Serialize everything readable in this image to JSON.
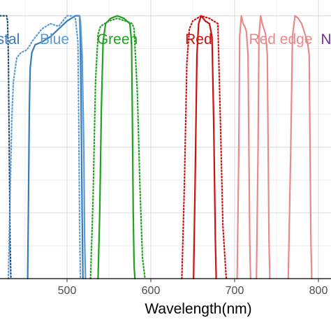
{
  "chart_data": {
    "type": "line",
    "xlabel": "Wavelength(nm)",
    "ylabel": "",
    "xlim": [
      420,
      815
    ],
    "ylim": [
      0,
      1.06
    ],
    "x_ticks": [
      500,
      600,
      700,
      800
    ],
    "x_tick_labels": [
      "500",
      "600",
      "700",
      "800"
    ],
    "grid": true,
    "band_labels": [
      {
        "text": "stal",
        "color": "#3a7ab8",
        "x": 430
      },
      {
        "text": "Blue",
        "color": "#5b9bd5",
        "x": 485
      },
      {
        "text": "Green",
        "color": "#22a022",
        "x": 560
      },
      {
        "text": "Red",
        "color": "#cc1111",
        "x": 657
      },
      {
        "text": "Red edge",
        "color": "#e88a8a",
        "x": 755
      },
      {
        "text": "Ne",
        "color": "#7030a0",
        "x": 814
      }
    ],
    "series": [
      {
        "color": "#1f4e79",
        "dash": "dotted",
        "x": [
          420,
          428,
          429,
          430,
          431,
          432,
          433
        ],
        "y": [
          1.0,
          1.0,
          0.98,
          0.85,
          0.5,
          0.15,
          0.0
        ]
      },
      {
        "color": "#3a7ab8",
        "dash": "solid",
        "x": [
          453,
          454,
          455,
          456,
          458,
          462,
          470,
          480,
          490,
          500,
          510,
          515,
          516,
          517,
          518,
          519
        ],
        "y": [
          0.0,
          0.3,
          0.65,
          0.8,
          0.86,
          0.89,
          0.9,
          0.92,
          0.95,
          0.98,
          1.0,
          1.0,
          0.9,
          0.6,
          0.25,
          0.0
        ]
      },
      {
        "color": "#5b9bd5",
        "dash": "dotted",
        "x": [
          430,
          432,
          434,
          436,
          440,
          445,
          452,
          460,
          470,
          480,
          490,
          495,
          500,
          505,
          510,
          513,
          514,
          515,
          516
        ],
        "y": [
          0.0,
          0.3,
          0.6,
          0.75,
          0.84,
          0.86,
          0.87,
          0.91,
          0.95,
          0.97,
          0.96,
          0.98,
          1.0,
          1.0,
          0.99,
          0.9,
          0.6,
          0.2,
          0.0
        ]
      },
      {
        "color": "#5b9bd5",
        "dash": "solid",
        "x": [
          515,
          516,
          518,
          520,
          521,
          522
        ],
        "y": [
          1.0,
          0.98,
          0.85,
          0.5,
          0.15,
          0.0
        ]
      },
      {
        "color": "#22a022",
        "dash": "solid",
        "x": [
          537,
          539,
          541,
          543,
          546,
          552,
          560,
          568,
          575,
          577,
          578,
          579,
          580,
          581
        ],
        "y": [
          0.0,
          0.25,
          0.65,
          0.9,
          0.97,
          0.99,
          1.0,
          0.99,
          0.97,
          0.9,
          0.6,
          0.25,
          0.05,
          0.0
        ]
      },
      {
        "color": "#22a022",
        "dash": "dotted",
        "x": [
          528,
          531,
          534,
          537,
          540,
          550,
          560,
          570,
          578,
          580,
          584,
          587,
          590,
          593
        ],
        "y": [
          0.0,
          0.3,
          0.75,
          0.93,
          0.96,
          0.98,
          0.99,
          0.98,
          0.97,
          0.95,
          0.7,
          0.35,
          0.08,
          0.0
        ]
      },
      {
        "color": "#cc1111",
        "dash": "solid",
        "x": [
          651,
          653,
          655,
          657,
          660,
          665,
          670,
          673,
          675,
          677,
          678
        ],
        "y": [
          0.0,
          0.4,
          0.85,
          0.97,
          1.0,
          0.98,
          0.97,
          0.92,
          0.6,
          0.15,
          0.0
        ]
      },
      {
        "color": "#cc1111",
        "dash": "dotted",
        "x": [
          637,
          640,
          643,
          646,
          650,
          660,
          670,
          680,
          683,
          686,
          690
        ],
        "y": [
          0.0,
          0.35,
          0.82,
          0.95,
          0.98,
          1.0,
          0.99,
          0.97,
          0.6,
          0.2,
          0.0
        ]
      },
      {
        "color": "#e88a8a",
        "dash": "solid",
        "x": [
          703,
          705,
          706,
          708,
          710,
          712,
          714,
          716,
          717,
          718,
          719
        ],
        "y": [
          0.0,
          0.5,
          0.92,
          1.0,
          0.97,
          0.96,
          0.94,
          0.85,
          0.5,
          0.15,
          0.0
        ]
      },
      {
        "color": "#e88a8a",
        "dash": "solid",
        "x": [
          726,
          728,
          729,
          731,
          733,
          735,
          737,
          739,
          740,
          741,
          742
        ],
        "y": [
          0.0,
          0.5,
          0.92,
          1.0,
          0.97,
          0.95,
          0.93,
          0.85,
          0.5,
          0.15,
          0.0
        ]
      },
      {
        "color": "#e88a8a",
        "dash": "solid",
        "x": [
          764,
          767,
          769,
          772,
          776,
          780,
          784,
          787,
          789,
          790,
          791,
          792
        ],
        "y": [
          0.0,
          0.5,
          0.92,
          1.0,
          0.99,
          0.97,
          0.93,
          0.9,
          0.85,
          0.5,
          0.15,
          0.0
        ]
      }
    ]
  }
}
